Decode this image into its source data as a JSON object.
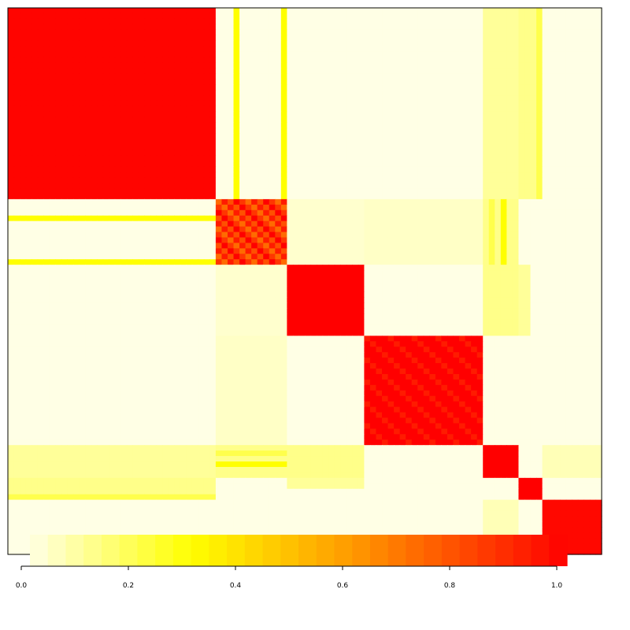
{
  "chart_data": {
    "type": "heatmap",
    "title": "",
    "xlabel": "",
    "ylabel": "",
    "scale": {
      "min": 0,
      "max": 1
    },
    "n": 100,
    "colors": {
      "low": "#FFFFE5",
      "yellow": "#FFFF00",
      "mid": "#FF9900",
      "high": "#FF0000",
      "background": "#FFFFFF",
      "frame": "#000000"
    },
    "clusters": [
      {
        "start": 0,
        "end": 35,
        "similarity": 0.99
      },
      {
        "start": 35,
        "end": 47,
        "similarity": 0.82
      },
      {
        "start": 47,
        "end": 60,
        "similarity": 1.0
      },
      {
        "start": 60,
        "end": 80,
        "similarity": 0.97
      },
      {
        "start": 80,
        "end": 86,
        "similarity": 1.0
      },
      {
        "start": 86,
        "end": 90,
        "similarity": 1.0
      },
      {
        "start": 90,
        "end": 100,
        "similarity": 0.98
      }
    ],
    "off_diagonal_blocks": [
      {
        "rows": [
          0,
          35
        ],
        "cols": [
          86,
          90
        ],
        "value": 0.12
      },
      {
        "rows": [
          47,
          60
        ],
        "cols": [
          86,
          88
        ],
        "value": 0.1
      },
      {
        "rows": [
          35,
          47
        ],
        "cols": [
          47,
          60
        ],
        "value": 0.03
      },
      {
        "rows": [
          35,
          47
        ],
        "cols": [
          60,
          80
        ],
        "value": 0.04
      },
      {
        "rows": [
          35,
          47
        ],
        "cols": [
          80,
          86
        ],
        "value": 0.08
      },
      {
        "rows": [
          80,
          86
        ],
        "cols": [
          35,
          47
        ],
        "value": 0.12
      },
      {
        "rows": [
          80,
          86
        ],
        "cols": [
          90,
          100
        ],
        "value": 0.06
      },
      {
        "rows": [
          80,
          86
        ],
        "cols": [
          0,
          35
        ],
        "value": 0.1
      },
      {
        "rows": [
          80,
          86
        ],
        "cols": [
          47,
          60
        ],
        "value": 0.12
      }
    ],
    "cross_lines": [
      {
        "index": 38,
        "range": [
          0,
          35
        ],
        "value": 0.3
      },
      {
        "index": 46,
        "range": [
          0,
          35
        ],
        "value": 0.3
      },
      {
        "index": 89,
        "range": [
          0,
          35
        ],
        "value": 0.2
      },
      {
        "index": 81,
        "range": [
          35,
          47
        ],
        "value": 0.2
      },
      {
        "index": 83,
        "range": [
          35,
          47
        ],
        "value": 0.3
      }
    ],
    "legend": {
      "type": "colorbar",
      "range": [
        0,
        1
      ],
      "ticks": [
        "0.0",
        "0.2",
        "0.4",
        "0.6",
        "0.8",
        "1.0"
      ],
      "tick_values": [
        0.0,
        0.2,
        0.4,
        0.6,
        0.8,
        1.0
      ],
      "bins": 30
    }
  }
}
